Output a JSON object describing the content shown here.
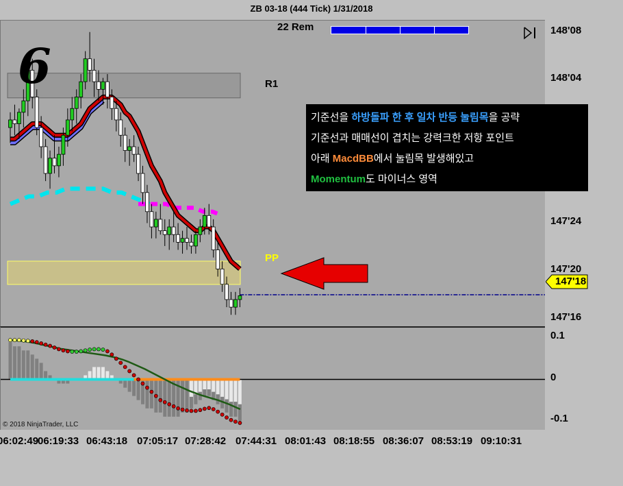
{
  "title": "ZB 03-18 (444 Tick)  1/31/2018",
  "remaining_label": "22 Rem",
  "remaining_progress": 1.0,
  "big_number": "6",
  "level_labels": {
    "r1": "R1",
    "pp": "PP"
  },
  "annotation": {
    "line1": {
      "before": "기준선을 ",
      "highlight": "하방돌파 한 후 일차 반등 눌림목",
      "after": "을 공략"
    },
    "line2": "기준선과 매매선이 겹치는 강력크한 저항  포인트",
    "line3": {
      "before": "아래 ",
      "highlight": "MacdBB",
      "after": "에서 눌림목 발생해있고"
    },
    "line4": {
      "highlight": "Momentum",
      "after": "도 마이너스 영역"
    }
  },
  "copyright": "© 2018 NinjaTrader, LLC",
  "last_price_label": "147'18",
  "colors": {
    "panel_bg": "#a9a9a9",
    "chart_bg": "#c0c0c0",
    "up_candle": "#22cc22",
    "down_candle": "#ffffff",
    "ema_red": "#d00000",
    "ema_blue": "#7070ff",
    "cyan_dash": "#00e5ee",
    "magenta_dash": "#ff00ff",
    "pivot_line": "#00008b",
    "arrow": "#e60000",
    "zone_fill": "#c8bf8a",
    "zone_border": "#ffff66",
    "r1_band": "#999999",
    "osc_cyan": "#22dddd",
    "osc_orange": "#ff8c1a",
    "osc_signal": "#1e5a14",
    "osc_dots": "#cc0000"
  },
  "chart_data": [
    {
      "type": "candlestick",
      "title": "ZB 03-18 (444 Tick)  1/31/2018",
      "y_ticks": [
        "148'08",
        "148'04",
        "147'24",
        "147'20",
        "147'16"
      ],
      "y_tick_values": [
        148.25,
        148.125,
        147.75,
        147.625,
        147.5
      ],
      "ylim": [
        147.48,
        148.28
      ],
      "x_ticks": [
        "06:02:49",
        "06:19:33",
        "06:43:18",
        "07:05:17",
        "07:28:42",
        "07:44:31",
        "08:01:43",
        "08:18:55",
        "08:36:07",
        "08:53:19",
        "09:10:31"
      ],
      "last_price": "147'18",
      "last_price_value": 147.5625,
      "levels": [
        {
          "name": "R1",
          "value": 148.11
        },
        {
          "name": "PP",
          "value": 147.62
        }
      ],
      "candles": [
        {
          "o": 148.0,
          "h": 148.04,
          "l": 147.96,
          "c": 148.02
        },
        {
          "o": 148.02,
          "h": 148.06,
          "l": 147.98,
          "c": 148.01
        },
        {
          "o": 148.01,
          "h": 148.05,
          "l": 147.97,
          "c": 148.04
        },
        {
          "o": 148.04,
          "h": 148.1,
          "l": 148.0,
          "c": 148.07
        },
        {
          "o": 148.07,
          "h": 148.18,
          "l": 148.03,
          "c": 148.15
        },
        {
          "o": 148.15,
          "h": 148.18,
          "l": 148.05,
          "c": 148.08
        },
        {
          "o": 148.08,
          "h": 148.1,
          "l": 147.98,
          "c": 148.0
        },
        {
          "o": 148.0,
          "h": 148.03,
          "l": 147.92,
          "c": 147.95
        },
        {
          "o": 147.95,
          "h": 147.97,
          "l": 147.86,
          "c": 147.88
        },
        {
          "o": 147.88,
          "h": 147.94,
          "l": 147.84,
          "c": 147.92
        },
        {
          "o": 147.92,
          "h": 147.98,
          "l": 147.88,
          "c": 147.9
        },
        {
          "o": 147.9,
          "h": 147.95,
          "l": 147.87,
          "c": 147.93
        },
        {
          "o": 147.93,
          "h": 148.0,
          "l": 147.9,
          "c": 147.98
        },
        {
          "o": 147.98,
          "h": 148.05,
          "l": 147.95,
          "c": 148.02
        },
        {
          "o": 148.02,
          "h": 148.08,
          "l": 147.99,
          "c": 148.05
        },
        {
          "o": 148.05,
          "h": 148.1,
          "l": 148.01,
          "c": 148.08
        },
        {
          "o": 148.08,
          "h": 148.14,
          "l": 148.05,
          "c": 148.12
        },
        {
          "o": 148.12,
          "h": 148.2,
          "l": 148.1,
          "c": 148.18
        },
        {
          "o": 148.18,
          "h": 148.25,
          "l": 148.12,
          "c": 148.15
        },
        {
          "o": 148.15,
          "h": 148.18,
          "l": 148.08,
          "c": 148.12
        },
        {
          "o": 148.12,
          "h": 148.15,
          "l": 148.07,
          "c": 148.1
        },
        {
          "o": 148.1,
          "h": 148.13,
          "l": 148.06,
          "c": 148.12
        },
        {
          "o": 148.12,
          "h": 148.14,
          "l": 148.05,
          "c": 148.08
        },
        {
          "o": 148.08,
          "h": 148.1,
          "l": 148.02,
          "c": 148.05
        },
        {
          "o": 148.05,
          "h": 148.07,
          "l": 147.99,
          "c": 148.02
        },
        {
          "o": 148.02,
          "h": 148.04,
          "l": 147.95,
          "c": 147.98
        },
        {
          "o": 147.98,
          "h": 148.0,
          "l": 147.91,
          "c": 147.94
        },
        {
          "o": 147.94,
          "h": 147.97,
          "l": 147.9,
          "c": 147.95
        },
        {
          "o": 147.95,
          "h": 147.98,
          "l": 147.91,
          "c": 147.93
        },
        {
          "o": 147.93,
          "h": 147.95,
          "l": 147.86,
          "c": 147.88
        },
        {
          "o": 147.88,
          "h": 147.9,
          "l": 147.8,
          "c": 147.83
        },
        {
          "o": 147.83,
          "h": 147.85,
          "l": 147.75,
          "c": 147.78
        },
        {
          "o": 147.78,
          "h": 147.8,
          "l": 147.71,
          "c": 147.74
        },
        {
          "o": 147.74,
          "h": 147.78,
          "l": 147.71,
          "c": 147.76
        },
        {
          "o": 147.76,
          "h": 147.8,
          "l": 147.72,
          "c": 147.73
        },
        {
          "o": 147.73,
          "h": 147.76,
          "l": 147.69,
          "c": 147.72
        },
        {
          "o": 147.72,
          "h": 147.76,
          "l": 147.68,
          "c": 147.74
        },
        {
          "o": 147.74,
          "h": 147.78,
          "l": 147.7,
          "c": 147.72
        },
        {
          "o": 147.72,
          "h": 147.75,
          "l": 147.68,
          "c": 147.7
        },
        {
          "o": 147.7,
          "h": 147.73,
          "l": 147.67,
          "c": 147.71
        },
        {
          "o": 147.71,
          "h": 147.74,
          "l": 147.68,
          "c": 147.7
        },
        {
          "o": 147.7,
          "h": 147.72,
          "l": 147.67,
          "c": 147.69
        },
        {
          "o": 147.69,
          "h": 147.73,
          "l": 147.67,
          "c": 147.72
        },
        {
          "o": 147.72,
          "h": 147.76,
          "l": 147.7,
          "c": 147.74
        },
        {
          "o": 147.74,
          "h": 147.79,
          "l": 147.72,
          "c": 147.77
        },
        {
          "o": 147.77,
          "h": 147.8,
          "l": 147.72,
          "c": 147.74
        },
        {
          "o": 147.74,
          "h": 147.76,
          "l": 147.66,
          "c": 147.68
        },
        {
          "o": 147.68,
          "h": 147.7,
          "l": 147.61,
          "c": 147.63
        },
        {
          "o": 147.63,
          "h": 147.65,
          "l": 147.57,
          "c": 147.59
        },
        {
          "o": 147.59,
          "h": 147.61,
          "l": 147.53,
          "c": 147.55
        },
        {
          "o": 147.55,
          "h": 147.57,
          "l": 147.51,
          "c": 147.53
        },
        {
          "o": 147.53,
          "h": 147.57,
          "l": 147.51,
          "c": 147.55
        },
        {
          "o": 147.55,
          "h": 147.58,
          "l": 147.53,
          "c": 147.56
        }
      ],
      "series": [
        {
          "type": "line",
          "values": [
            147.97,
            147.97,
            147.98,
            147.99,
            148.0,
            148.01,
            148.01,
            148.01,
            148.0,
            147.99,
            147.98,
            147.98,
            147.98,
            147.98,
            147.99,
            148.0,
            148.01,
            148.03,
            148.05,
            148.06,
            148.07,
            148.08,
            148.08,
            148.08,
            148.07,
            148.06,
            148.04,
            148.03,
            148.01,
            147.99,
            147.96,
            147.93,
            147.9,
            147.88,
            147.86,
            147.83,
            147.81,
            147.79,
            147.77,
            147.76,
            147.75,
            147.74,
            147.73,
            147.73,
            147.74,
            147.74,
            147.73,
            147.71,
            147.69,
            147.67,
            147.65,
            147.64,
            147.63
          ]
        },
        {
          "type": "line",
          "values": [
            147.96,
            147.96,
            147.97,
            147.98,
            147.99,
            148.0,
            148.0,
            148.0,
            147.99,
            147.98,
            147.97,
            147.97,
            147.97,
            147.97,
            147.98,
            147.99,
            148.0,
            148.02,
            148.04,
            148.05,
            148.06,
            148.07
          ]
        },
        {
          "type": "line",
          "values": [
            147.8,
            147.81,
            147.82,
            147.82,
            147.83,
            147.83,
            147.84,
            147.84,
            147.84,
            147.84,
            147.84,
            147.83,
            147.83,
            147.82,
            147.81,
            147.8
          ]
        },
        {
          "type": "line",
          "values": [
            147.8,
            147.8,
            147.8,
            147.8,
            147.79,
            147.79,
            147.79,
            147.78,
            147.78,
            147.77
          ]
        }
      ]
    },
    {
      "type": "bar",
      "y_ticks": [
        "0.1",
        "0",
        "-0.1"
      ],
      "y_tick_values": [
        0.1,
        0,
        -0.1
      ],
      "ylim": [
        -0.125,
        0.125
      ],
      "histogram": [
        0.09,
        0.08,
        0.08,
        0.07,
        0.07,
        0.06,
        0.05,
        0.04,
        0.02,
        0.01,
        0.0,
        -0.01,
        -0.01,
        -0.01,
        0.0,
        0.0,
        0.0,
        0.01,
        0.02,
        0.03,
        0.03,
        0.03,
        0.02,
        0.01,
        0.0,
        -0.01,
        -0.02,
        -0.03,
        -0.04,
        -0.05,
        -0.06,
        -0.07,
        -0.07,
        -0.08,
        -0.08,
        -0.09,
        -0.09,
        -0.09,
        -0.09,
        -0.08,
        -0.08,
        -0.07,
        -0.06,
        -0.05,
        -0.04,
        -0.04,
        -0.05,
        -0.06,
        -0.07,
        -0.08,
        -0.09,
        -0.09,
        -0.1
      ],
      "macd_dots": [
        0.095,
        0.095,
        0.095,
        0.094,
        0.093,
        0.092,
        0.09,
        0.087,
        0.084,
        0.081,
        0.077,
        0.073,
        0.07,
        0.068,
        0.067,
        0.067,
        0.068,
        0.07,
        0.072,
        0.073,
        0.073,
        0.072,
        0.068,
        0.06,
        0.05,
        0.04,
        0.03,
        0.02,
        0.01,
        0.0,
        -0.01,
        -0.02,
        -0.03,
        -0.04,
        -0.05,
        -0.055,
        -0.06,
        -0.065,
        -0.07,
        -0.073,
        -0.075,
        -0.076,
        -0.076,
        -0.074,
        -0.071,
        -0.069,
        -0.072,
        -0.078,
        -0.085,
        -0.092,
        -0.098,
        -0.102,
        -0.105
      ],
      "signal": [
        0.095,
        0.094,
        0.093,
        0.091,
        0.089,
        0.086,
        0.083,
        0.08,
        0.077,
        0.074,
        0.072,
        0.07,
        0.068,
        0.066,
        0.064,
        0.062,
        0.06,
        0.058,
        0.055,
        0.052,
        0.048,
        0.043,
        0.037,
        0.031,
        0.025,
        0.018,
        0.011,
        0.004,
        -0.003,
        -0.01,
        -0.016,
        -0.022,
        -0.028,
        -0.033,
        -0.038,
        -0.042,
        -0.046,
        -0.05,
        -0.055,
        -0.06,
        -0.066,
        -0.072
      ],
      "zero_line_cyan_end": 28,
      "zero_line_orange_start": 28
    }
  ]
}
